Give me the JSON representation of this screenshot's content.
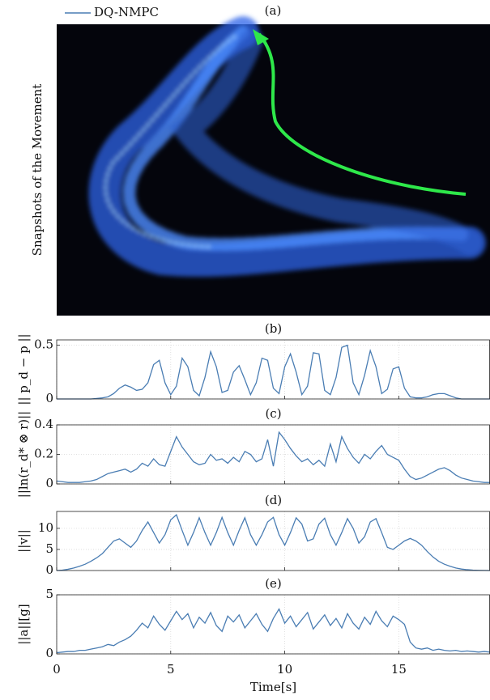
{
  "image_panel": {
    "title": "(a)",
    "ylabel": "Snapshots of the Movement"
  },
  "chart_data": [
    {
      "type": "line",
      "title": "(b)",
      "ylabel": "|| p_d − p ||",
      "xlim": [
        0,
        19
      ],
      "xticks": [
        0,
        5,
        10,
        15
      ],
      "xtick_labels": false,
      "ylim": [
        0,
        0.55
      ],
      "yticks": [
        0,
        0.5
      ],
      "grid": true,
      "x": [
        0,
        0.25,
        0.5,
        0.75,
        1,
        1.25,
        1.5,
        1.75,
        2,
        2.25,
        2.5,
        2.75,
        3,
        3.25,
        3.5,
        3.75,
        4,
        4.25,
        4.5,
        4.75,
        5,
        5.25,
        5.5,
        5.75,
        6,
        6.25,
        6.5,
        6.75,
        7,
        7.25,
        7.5,
        7.75,
        8,
        8.25,
        8.5,
        8.75,
        9,
        9.25,
        9.5,
        9.75,
        10,
        10.25,
        10.5,
        10.75,
        11,
        11.25,
        11.5,
        11.75,
        12,
        12.25,
        12.5,
        12.75,
        13,
        13.25,
        13.5,
        13.75,
        14,
        14.25,
        14.5,
        14.75,
        15,
        15.25,
        15.5,
        15.75,
        16,
        16.25,
        16.5,
        16.75,
        17,
        17.25,
        17.5,
        17.75,
        18,
        18.25,
        18.5,
        18.75,
        19
      ],
      "series": [
        {
          "name": "DQ-NMPC",
          "color": "#4a7db3",
          "values": [
            0,
            0,
            0,
            0,
            0,
            0,
            0,
            0.005,
            0.01,
            0.02,
            0.05,
            0.1,
            0.13,
            0.11,
            0.08,
            0.09,
            0.15,
            0.32,
            0.36,
            0.15,
            0.04,
            0.12,
            0.38,
            0.3,
            0.08,
            0.03,
            0.2,
            0.44,
            0.3,
            0.06,
            0.08,
            0.25,
            0.31,
            0.18,
            0.04,
            0.15,
            0.38,
            0.36,
            0.1,
            0.05,
            0.3,
            0.42,
            0.25,
            0.04,
            0.12,
            0.43,
            0.42,
            0.08,
            0.04,
            0.2,
            0.48,
            0.5,
            0.15,
            0.04,
            0.22,
            0.45,
            0.3,
            0.05,
            0.09,
            0.28,
            0.3,
            0.1,
            0.02,
            0.01,
            0.01,
            0.02,
            0.04,
            0.05,
            0.05,
            0.03,
            0.01,
            0,
            0,
            0,
            0,
            0,
            0
          ]
        }
      ]
    },
    {
      "type": "line",
      "title": "(c)",
      "ylabel": "||ln(r_d* ⊗ r)||",
      "xlim": [
        0,
        19
      ],
      "xticks": [
        0,
        5,
        10,
        15
      ],
      "xtick_labels": false,
      "ylim": [
        0,
        0.4
      ],
      "yticks": [
        0,
        0.2,
        0.4
      ],
      "grid": true,
      "x": [
        0,
        0.25,
        0.5,
        0.75,
        1,
        1.25,
        1.5,
        1.75,
        2,
        2.25,
        2.5,
        2.75,
        3,
        3.25,
        3.5,
        3.75,
        4,
        4.25,
        4.5,
        4.75,
        5,
        5.25,
        5.5,
        5.75,
        6,
        6.25,
        6.5,
        6.75,
        7,
        7.25,
        7.5,
        7.75,
        8,
        8.25,
        8.5,
        8.75,
        9,
        9.25,
        9.5,
        9.75,
        10,
        10.25,
        10.5,
        10.75,
        11,
        11.25,
        11.5,
        11.75,
        12,
        12.25,
        12.5,
        12.75,
        13,
        13.25,
        13.5,
        13.75,
        14,
        14.25,
        14.5,
        14.75,
        15,
        15.25,
        15.5,
        15.75,
        16,
        16.25,
        16.5,
        16.75,
        17,
        17.25,
        17.5,
        17.75,
        18,
        18.25,
        18.5,
        18.75,
        19
      ],
      "series": [
        {
          "name": "DQ-NMPC",
          "color": "#4a7db3",
          "values": [
            0.02,
            0.015,
            0.01,
            0.01,
            0.01,
            0.015,
            0.02,
            0.03,
            0.05,
            0.07,
            0.08,
            0.09,
            0.1,
            0.08,
            0.1,
            0.14,
            0.12,
            0.17,
            0.13,
            0.12,
            0.22,
            0.32,
            0.25,
            0.2,
            0.15,
            0.13,
            0.14,
            0.2,
            0.16,
            0.17,
            0.14,
            0.18,
            0.15,
            0.22,
            0.2,
            0.15,
            0.17,
            0.3,
            0.12,
            0.35,
            0.3,
            0.24,
            0.19,
            0.15,
            0.17,
            0.13,
            0.16,
            0.12,
            0.27,
            0.15,
            0.32,
            0.24,
            0.18,
            0.14,
            0.2,
            0.17,
            0.22,
            0.26,
            0.2,
            0.18,
            0.16,
            0.1,
            0.05,
            0.03,
            0.04,
            0.06,
            0.08,
            0.1,
            0.11,
            0.09,
            0.06,
            0.04,
            0.03,
            0.02,
            0.015,
            0.01,
            0.01
          ]
        }
      ]
    },
    {
      "type": "line",
      "title": "(d)",
      "ylabel": "||v||",
      "xlim": [
        0,
        19
      ],
      "xticks": [
        0,
        5,
        10,
        15
      ],
      "xtick_labels": false,
      "ylim": [
        0,
        14
      ],
      "yticks": [
        0,
        5,
        10
      ],
      "grid": true,
      "x": [
        0,
        0.25,
        0.5,
        0.75,
        1,
        1.25,
        1.5,
        1.75,
        2,
        2.25,
        2.5,
        2.75,
        3,
        3.25,
        3.5,
        3.75,
        4,
        4.25,
        4.5,
        4.75,
        5,
        5.25,
        5.5,
        5.75,
        6,
        6.25,
        6.5,
        6.75,
        7,
        7.25,
        7.5,
        7.75,
        8,
        8.25,
        8.5,
        8.75,
        9,
        9.25,
        9.5,
        9.75,
        10,
        10.25,
        10.5,
        10.75,
        11,
        11.25,
        11.5,
        11.75,
        12,
        12.25,
        12.5,
        12.75,
        13,
        13.25,
        13.5,
        13.75,
        14,
        14.25,
        14.5,
        14.75,
        15,
        15.25,
        15.5,
        15.75,
        16,
        16.25,
        16.5,
        16.75,
        17,
        17.25,
        17.5,
        17.75,
        18,
        18.25,
        18.5,
        18.75,
        19
      ],
      "series": [
        {
          "name": "DQ-NMPC",
          "color": "#4a7db3",
          "values": [
            0,
            0.1,
            0.3,
            0.6,
            1,
            1.5,
            2.2,
            3,
            4,
            5.5,
            7,
            7.5,
            6.5,
            5.5,
            7,
            9.5,
            11.5,
            9,
            6.5,
            8.5,
            12,
            13.2,
            9.5,
            6,
            9,
            12.5,
            9,
            6,
            9,
            12.6,
            9,
            6,
            9.5,
            12.5,
            8.5,
            6,
            8.5,
            11.5,
            12.6,
            8.5,
            6,
            9,
            12.5,
            11,
            7,
            7.5,
            11,
            12.4,
            8.5,
            6,
            9,
            12.3,
            10,
            6.5,
            8,
            11.5,
            12.3,
            9,
            5.5,
            5,
            6,
            7,
            7.6,
            7,
            6,
            4.5,
            3.2,
            2.2,
            1.5,
            1,
            0.6,
            0.35,
            0.2,
            0.1,
            0.05,
            0.02,
            0
          ]
        }
      ]
    },
    {
      "type": "line",
      "title": "(e)",
      "ylabel": "||a||[g]",
      "xlabel": "Time[s]",
      "xlim": [
        0,
        19
      ],
      "xticks": [
        0,
        5,
        10,
        15
      ],
      "xtick_labels": true,
      "ylim": [
        0,
        5
      ],
      "yticks": [
        0,
        5
      ],
      "grid": true,
      "x": [
        0,
        0.25,
        0.5,
        0.75,
        1,
        1.25,
        1.5,
        1.75,
        2,
        2.25,
        2.5,
        2.75,
        3,
        3.25,
        3.5,
        3.75,
        4,
        4.25,
        4.5,
        4.75,
        5,
        5.25,
        5.5,
        5.75,
        6,
        6.25,
        6.5,
        6.75,
        7,
        7.25,
        7.5,
        7.75,
        8,
        8.25,
        8.5,
        8.75,
        9,
        9.25,
        9.5,
        9.75,
        10,
        10.25,
        10.5,
        10.75,
        11,
        11.25,
        11.5,
        11.75,
        12,
        12.25,
        12.5,
        12.75,
        13,
        13.25,
        13.5,
        13.75,
        14,
        14.25,
        14.5,
        14.75,
        15,
        15.25,
        15.5,
        15.75,
        16,
        16.25,
        16.5,
        16.75,
        17,
        17.25,
        17.5,
        17.75,
        18,
        18.25,
        18.5,
        18.75,
        19
      ],
      "series": [
        {
          "name": "DQ-NMPC",
          "color": "#4a7db3",
          "values": [
            0.1,
            0.15,
            0.2,
            0.2,
            0.3,
            0.3,
            0.4,
            0.5,
            0.6,
            0.8,
            0.7,
            1,
            1.2,
            1.5,
            2,
            2.6,
            2.2,
            3.2,
            2.5,
            2,
            2.8,
            3.6,
            2.9,
            3.4,
            2.2,
            3.1,
            2.6,
            3.5,
            2.4,
            1.9,
            3.2,
            2.7,
            3.3,
            2.2,
            2.8,
            3.4,
            2.5,
            1.9,
            3,
            3.8,
            2.6,
            3.2,
            2.3,
            2.9,
            3.5,
            2.1,
            2.7,
            3.3,
            2.4,
            3,
            2.2,
            3.4,
            2.6,
            2.1,
            3.1,
            2.5,
            3.6,
            2.8,
            2.3,
            3.2,
            2.9,
            2.5,
            1,
            0.5,
            0.4,
            0.5,
            0.3,
            0.4,
            0.3,
            0.25,
            0.3,
            0.2,
            0.25,
            0.2,
            0.15,
            0.2,
            0.15
          ]
        }
      ]
    }
  ]
}
